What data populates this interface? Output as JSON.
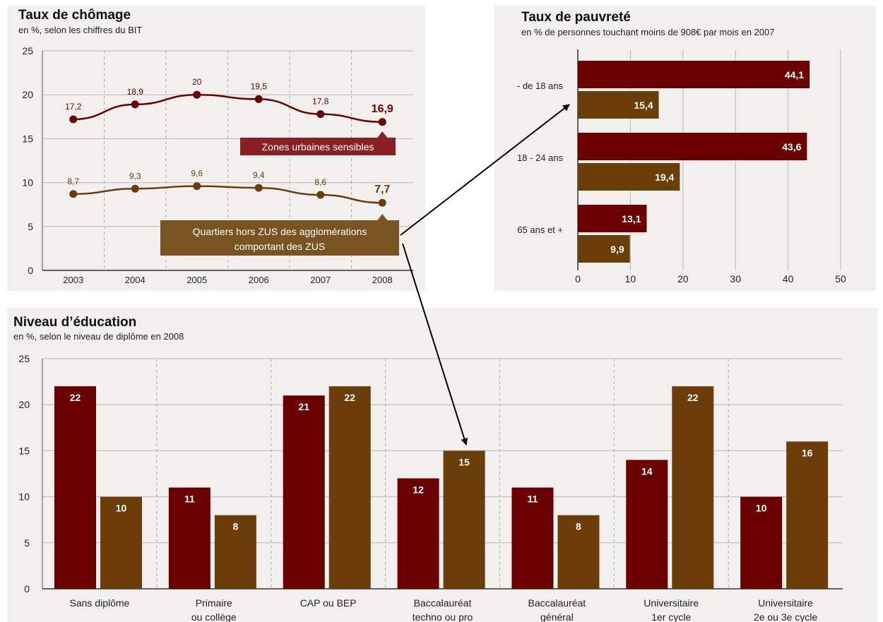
{
  "colors": {
    "zus": "#6b0000",
    "hors_zus": "#6b3d08",
    "zus_label_bg": "#8a1f24",
    "hors_label_bg": "#7a5420",
    "grid": "#b9b9b9",
    "panel_bg": "#f1f0ef"
  },
  "chomage": {
    "title": "Taux de chômage",
    "subtitle": "en %, selon les chiffres du BIT"
  },
  "pauvrete": {
    "title": "Taux de pauvreté",
    "subtitle": "en % de personnes touchant moins de 908€ par mois en 2007"
  },
  "education": {
    "title": "Niveau d’éducation",
    "subtitle": "en %, selon le niveau de diplôme en 2008"
  },
  "chart_data": [
    {
      "type": "line",
      "title": "Taux de chômage",
      "subtitle": "en %, selon les chiffres du BIT",
      "x": [
        "2003",
        "2004",
        "2005",
        "2006",
        "2007",
        "2008"
      ],
      "ylim": [
        0,
        25
      ],
      "yticks": [
        0,
        5,
        10,
        15,
        20,
        25
      ],
      "grid": true,
      "series": [
        {
          "name": "Zones urbaines sensibles",
          "values": [
            17.2,
            18.9,
            20,
            19.5,
            17.8,
            16.9
          ],
          "labels": [
            "17,2",
            "18,9",
            "20",
            "19,5",
            "17,8",
            "16,9"
          ]
        },
        {
          "name": "Quartiers hors ZUS des agglomérations comportant des ZUS",
          "values": [
            8.7,
            9.3,
            9.6,
            9.4,
            8.6,
            7.7
          ],
          "labels": [
            "8,7",
            "9,3",
            "9,6",
            "9,4",
            "8,6",
            "7,7"
          ],
          "name_lines": [
            "Quartiers hors ZUS des agglomérations",
            "comportant des ZUS"
          ]
        }
      ]
    },
    {
      "type": "bar",
      "orientation": "horizontal",
      "title": "Taux de pauvreté",
      "subtitle": "en % de personnes touchant moins de 908€ par mois en 2007",
      "categories": [
        "- de 18 ans",
        "18 - 24 ans",
        "65 ans et +"
      ],
      "xlim": [
        0,
        50
      ],
      "xticks": [
        0,
        10,
        20,
        30,
        40,
        50
      ],
      "grid": true,
      "series": [
        {
          "values": [
            44.1,
            43.6,
            13.1
          ],
          "labels": [
            "44,1",
            "43,6",
            "13,1"
          ]
        },
        {
          "values": [
            15.4,
            19.4,
            9.9
          ],
          "labels": [
            "15,4",
            "19,4",
            "9,9"
          ]
        }
      ]
    },
    {
      "type": "bar",
      "title": "Niveau d’éducation",
      "subtitle": "en %, selon le niveau de diplôme en 2008",
      "categories": [
        [
          "Sans diplôme"
        ],
        [
          "Primaire",
          "ou collège"
        ],
        [
          "CAP ou BEP"
        ],
        [
          "Baccalauréat",
          "techno ou pro"
        ],
        [
          "Baccalauréat",
          "général"
        ],
        [
          "Universitaire",
          "1er cycle"
        ],
        [
          "Universitaire",
          "2e ou 3e cycle"
        ]
      ],
      "ylim": [
        0,
        25
      ],
      "yticks": [
        0,
        5,
        10,
        15,
        20,
        25
      ],
      "grid": true,
      "series": [
        {
          "values": [
            22,
            11,
            21,
            12,
            11,
            14,
            10
          ]
        },
        {
          "values": [
            10,
            8,
            22,
            15,
            8,
            22,
            16
          ]
        }
      ]
    }
  ]
}
